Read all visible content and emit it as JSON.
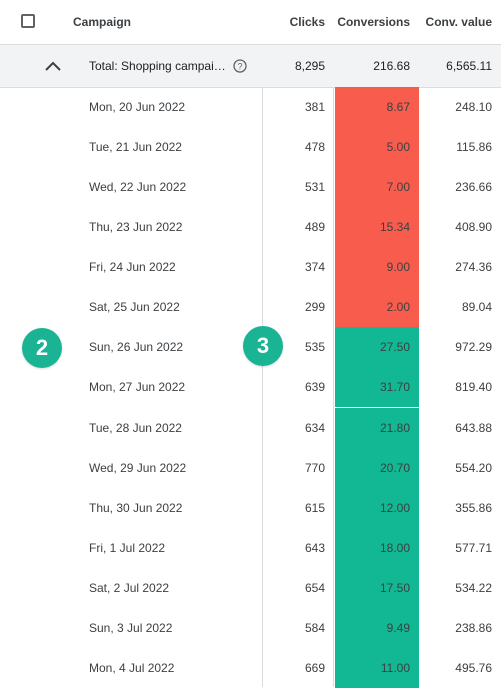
{
  "colors": {
    "negative": "#f75c4c",
    "positive": "#12b893",
    "total_bg": "#f1f3f4",
    "badge": "#1ab394"
  },
  "header": {
    "campaign": "Campaign",
    "clicks": "Clicks",
    "conversions": "Conversions",
    "conv_value": "Conv. value"
  },
  "total": {
    "label": "Total: Shopping campai…",
    "clicks": "8,295",
    "conversions": "216.68",
    "conv_value": "6,565.11"
  },
  "rows": [
    {
      "date": "Mon, 20 Jun 2022",
      "clicks": "381",
      "conversions": "8.67",
      "conv_value": "248.10",
      "status": "negative"
    },
    {
      "date": "Tue, 21 Jun 2022",
      "clicks": "478",
      "conversions": "5.00",
      "conv_value": "115.86",
      "status": "negative"
    },
    {
      "date": "Wed, 22 Jun 2022",
      "clicks": "531",
      "conversions": "7.00",
      "conv_value": "236.66",
      "status": "negative"
    },
    {
      "date": "Thu, 23 Jun 2022",
      "clicks": "489",
      "conversions": "15.34",
      "conv_value": "408.90",
      "status": "negative"
    },
    {
      "date": "Fri, 24 Jun 2022",
      "clicks": "374",
      "conversions": "9.00",
      "conv_value": "274.36",
      "status": "negative"
    },
    {
      "date": "Sat, 25 Jun 2022",
      "clicks": "299",
      "conversions": "2.00",
      "conv_value": "89.04",
      "status": "negative"
    },
    {
      "date": "Sun, 26 Jun 2022",
      "clicks": "535",
      "conversions": "27.50",
      "conv_value": "972.29",
      "status": "positive"
    },
    {
      "date": "Mon, 27 Jun 2022",
      "clicks": "639",
      "conversions": "31.70",
      "conv_value": "819.40",
      "status": "positive"
    },
    {
      "date": "Tue, 28 Jun 2022",
      "clicks": "634",
      "conversions": "21.80",
      "conv_value": "643.88",
      "status": "positive"
    },
    {
      "date": "Wed, 29 Jun 2022",
      "clicks": "770",
      "conversions": "20.70",
      "conv_value": "554.20",
      "status": "positive"
    },
    {
      "date": "Thu, 30 Jun 2022",
      "clicks": "615",
      "conversions": "12.00",
      "conv_value": "355.86",
      "status": "positive"
    },
    {
      "date": "Fri, 1 Jul 2022",
      "clicks": "643",
      "conversions": "18.00",
      "conv_value": "577.71",
      "status": "positive"
    },
    {
      "date": "Sat, 2 Jul 2022",
      "clicks": "654",
      "conversions": "17.50",
      "conv_value": "534.22",
      "status": "positive"
    },
    {
      "date": "Sun, 3 Jul 2022",
      "clicks": "584",
      "conversions": "9.49",
      "conv_value": "238.86",
      "status": "positive"
    },
    {
      "date": "Mon, 4 Jul 2022",
      "clicks": "669",
      "conversions": "11.00",
      "conv_value": "495.76",
      "status": "positive"
    }
  ],
  "badges": [
    "2",
    "3"
  ]
}
